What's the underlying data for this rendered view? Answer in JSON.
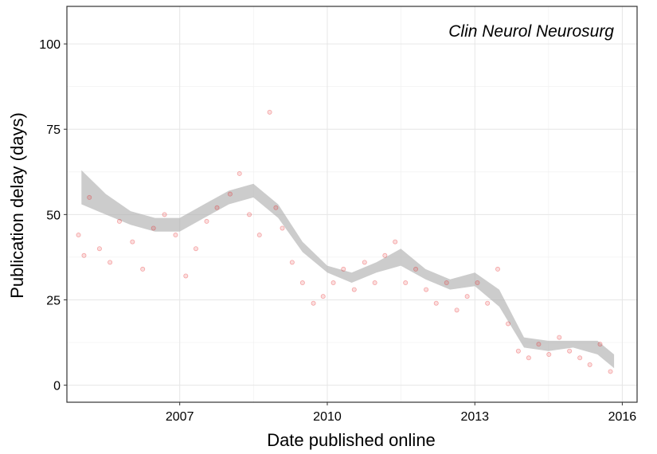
{
  "chart_data": {
    "type": "scatter",
    "annotation": "Clin Neurol Neurosurg",
    "xlabel": "Date published online",
    "ylabel": "Publication delay (days)",
    "xlim": [
      "2004-09-15",
      "2016-04-20"
    ],
    "ylim": [
      -5,
      111
    ],
    "x_ticks": [
      "2007-01-01",
      "2010-01-01",
      "2013-01-01",
      "2016-01-01"
    ],
    "x_tick_labels": [
      "2007",
      "2010",
      "2013",
      "2016"
    ],
    "y_ticks": [
      0,
      25,
      50,
      75,
      100
    ],
    "y_tick_labels": [
      "0",
      "25",
      "50",
      "75",
      "100"
    ],
    "grid": true,
    "point_color": "#e41a1c",
    "point_alpha": 0.15,
    "smooth_color": "#b0b0b0",
    "series": [
      {
        "kind": "smooth-ribbon",
        "x": [
          "2005-01-01",
          "2005-07-01",
          "2006-01-01",
          "2006-07-01",
          "2007-01-01",
          "2007-07-01",
          "2008-01-01",
          "2008-07-01",
          "2009-01-01",
          "2009-07-01",
          "2010-01-01",
          "2010-07-01",
          "2011-01-01",
          "2011-07-01",
          "2012-01-01",
          "2012-07-01",
          "2013-01-01",
          "2013-07-01",
          "2014-01-01",
          "2014-07-01",
          "2015-01-01",
          "2015-07-01",
          "2015-11-01"
        ],
        "lower": [
          53,
          50,
          47,
          45,
          45,
          49,
          53,
          55,
          49,
          39,
          33,
          30,
          33,
          35,
          31,
          28,
          29,
          23,
          11,
          10,
          11,
          9,
          5
        ],
        "upper": [
          63,
          56,
          51,
          49,
          49,
          53,
          57,
          59,
          53,
          42,
          35,
          33,
          36,
          40,
          34,
          31,
          33,
          28,
          14,
          13,
          13,
          13,
          9
        ]
      },
      {
        "kind": "points",
        "x": [
          "2004-12-10",
          "2005-01-20",
          "2005-03-01",
          "2005-05-15",
          "2005-08-01",
          "2005-10-10",
          "2006-01-15",
          "2006-04-01",
          "2006-06-20",
          "2006-09-10",
          "2006-12-01",
          "2007-02-15",
          "2007-05-01",
          "2007-07-20",
          "2007-10-05",
          "2008-01-10",
          "2008-03-20",
          "2008-06-01",
          "2008-08-15",
          "2008-10-30",
          "2008-12-15",
          "2009-02-01",
          "2009-04-15",
          "2009-07-01",
          "2009-09-20",
          "2009-12-01",
          "2010-02-15",
          "2010-05-01",
          "2010-07-20",
          "2010-10-05",
          "2010-12-20",
          "2011-03-05",
          "2011-05-20",
          "2011-08-05",
          "2011-10-20",
          "2012-01-05",
          "2012-03-20",
          "2012-06-05",
          "2012-08-20",
          "2012-11-05",
          "2013-01-20",
          "2013-04-05",
          "2013-06-20",
          "2013-09-05",
          "2013-11-20",
          "2014-02-05",
          "2014-04-20",
          "2014-07-05",
          "2014-09-20",
          "2014-12-05",
          "2015-02-20",
          "2015-05-05",
          "2015-07-20",
          "2015-10-05"
        ],
        "y": [
          44,
          38,
          55,
          40,
          36,
          48,
          42,
          34,
          46,
          50,
          44,
          32,
          40,
          48,
          52,
          56,
          62,
          50,
          44,
          80,
          52,
          46,
          36,
          30,
          24,
          26,
          30,
          34,
          28,
          36,
          30,
          38,
          42,
          30,
          34,
          28,
          24,
          30,
          22,
          26,
          30,
          24,
          34,
          18,
          10,
          8,
          12,
          9,
          14,
          10,
          8,
          6,
          12,
          4
        ]
      }
    ]
  }
}
